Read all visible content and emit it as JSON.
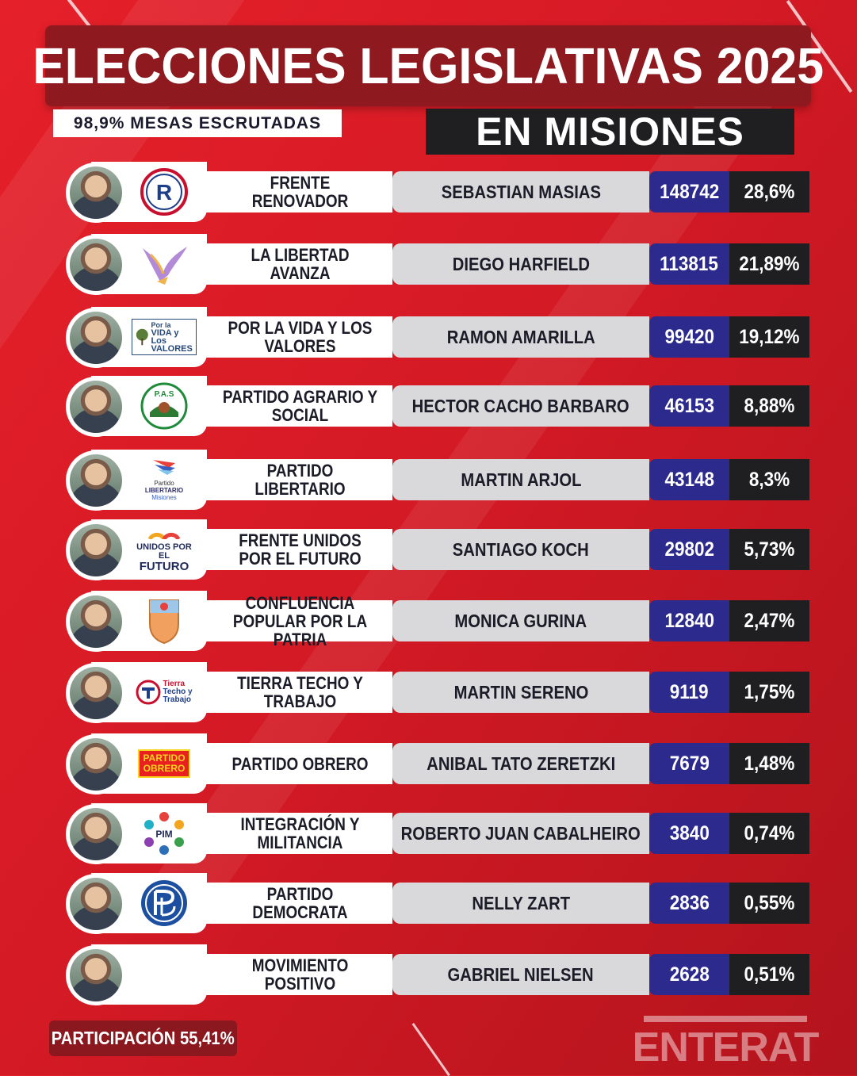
{
  "header": {
    "title": "ELECCIONES LEGISLATIVAS 2025",
    "mesas": "98,9% MESAS ESCRUTADAS",
    "subtitle": "EN MISIONES"
  },
  "rows": [
    {
      "party": "FRENTE RENOVADOR",
      "candidate": "SEBASTIAN MASIAS",
      "votes": "148742",
      "percent": "28,6%",
      "logo": "frente-renovador-logo"
    },
    {
      "party": "LA LIBERTAD AVANZA",
      "candidate": "DIEGO HARFIELD",
      "votes": "113815",
      "percent": "21,89%",
      "logo": "libertad-avanza-logo"
    },
    {
      "party": "POR LA VIDA Y LOS VALORES",
      "candidate": "RAMON AMARILLA",
      "votes": "99420",
      "percent": "19,12%",
      "logo": "por-la-vida-logo"
    },
    {
      "party": "PARTIDO AGRARIO Y SOCIAL",
      "candidate": "HECTOR CACHO BARBARO",
      "votes": "46153",
      "percent": "8,88%",
      "logo": "pas-logo"
    },
    {
      "party": "PARTIDO LIBERTARIO",
      "candidate": "MARTIN ARJOL",
      "votes": "43148",
      "percent": "8,3%",
      "logo": "partido-libertario-logo"
    },
    {
      "party": "FRENTE UNIDOS POR EL FUTURO",
      "candidate": "SANTIAGO KOCH",
      "votes": "29802",
      "percent": "5,73%",
      "logo": "unidos-futuro-logo"
    },
    {
      "party": "CONFLUENCIA POPULAR POR LA PATRIA",
      "candidate": "MONICA GURINA",
      "votes": "12840",
      "percent": "2,47%",
      "logo": "confluencia-logo"
    },
    {
      "party": "TIERRA TECHO Y TRABAJO",
      "candidate": "MARTIN SERENO",
      "votes": "9119",
      "percent": "1,75%",
      "logo": "tierra-techo-logo"
    },
    {
      "party": "PARTIDO OBRERO",
      "candidate": "ANIBAL TATO ZERETZKI",
      "votes": "7679",
      "percent": "1,48%",
      "logo": "partido-obrero-logo"
    },
    {
      "party": "INTEGRACIÓN Y MILITANCIA",
      "candidate": "ROBERTO JUAN CABALHEIRO",
      "votes": "3840",
      "percent": "0,74%",
      "logo": "pim-logo"
    },
    {
      "party": "PARTIDO DEMOCRATA",
      "candidate": "NELLY ZART",
      "votes": "2836",
      "percent": "0,55%",
      "logo": "partido-democrata-logo"
    },
    {
      "party": "MOVIMIENTO POSITIVO",
      "candidate": "GABRIEL NIELSEN",
      "votes": "2628",
      "percent": "0,51%",
      "logo": ""
    }
  ],
  "logos": {
    "fr_letter": "R",
    "lla": "",
    "vida_line1": "Por la",
    "vida_line2": "VIDA y Los",
    "vida_line3": "VALORES",
    "pas": "P.A.S",
    "plib_line1": "Partido",
    "plib_line2": "LIBERTARIO",
    "plib_line3": "Misiones",
    "unidos_line1": "UNIDOS POR EL",
    "unidos_line2": "FUTURO",
    "ttt_line1": "Tierra",
    "ttt_line2": "Techo y",
    "ttt_line3": "Trabajo",
    "po_line1": "PARTIDO",
    "po_line2": "OBRERO",
    "pim": "PIM"
  },
  "footer": {
    "participation": "PARTICIPACIÓN 55,41%",
    "brand": "ENTERAT"
  },
  "colors": {
    "background": "#d51a25",
    "title_box": "#8e1a20",
    "votes_bg": "#2c2a8c",
    "percent_bg": "#1f1f22",
    "candidate_bg": "#d9d9dc"
  }
}
